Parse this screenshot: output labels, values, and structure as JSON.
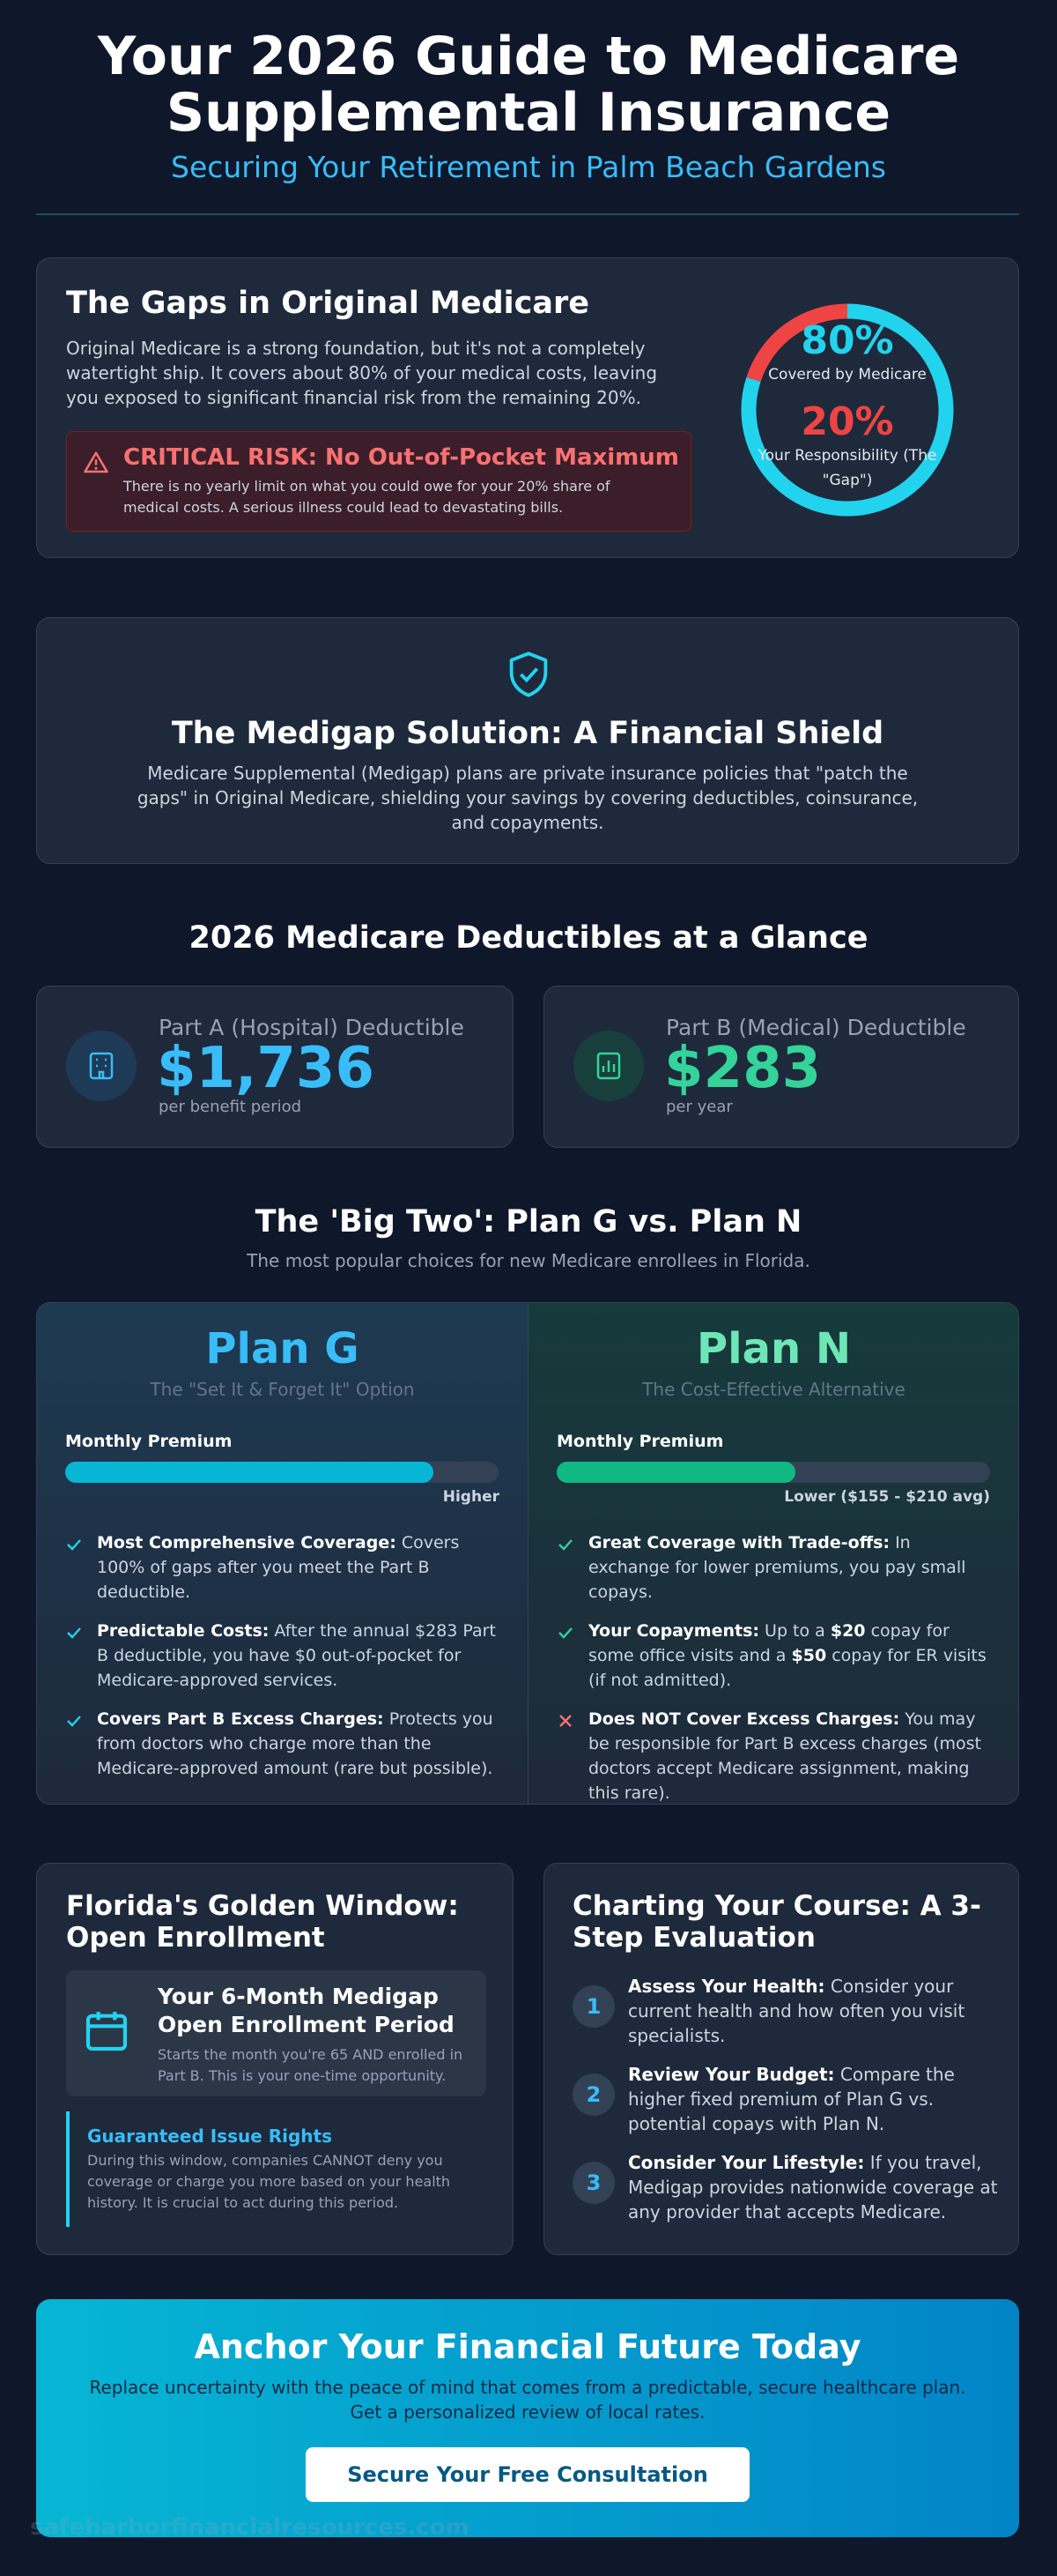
{
  "header": {
    "title": "Your 2026 Guide to Medicare Supplemental Insurance",
    "subtitle": "Securing Your Retirement in Palm Beach Gardens"
  },
  "gaps": {
    "title": "The Gaps in Original Medicare",
    "text": "Original Medicare is a strong foundation, but it's not a completely watertight ship. It covers about 80% of your medical costs, leaving you exposed to significant financial risk from the remaining 20%.",
    "alert": {
      "title": "CRITICAL RISK: No Out-of-Pocket Maximum",
      "text": "There is no yearly limit on what you could owe for your 20% share of medical costs. A serious illness could lead to devastating bills."
    },
    "donut": {
      "segments": [
        {
          "value": 80,
          "label": "80%",
          "caption": "Covered by Medicare",
          "color": "#22d3ee"
        },
        {
          "value": 20,
          "label": "20%",
          "caption": "Your Responsibility (The \"Gap\")",
          "color": "#ef4444"
        }
      ]
    }
  },
  "solution": {
    "title": "The Medigap Solution: A Financial Shield",
    "text": "Medicare Supplemental (Medigap) plans are private insurance policies that \"patch the gaps\" in Original Medicare, shielding your savings by covering deductibles, coinsurance, and copayments."
  },
  "deductibles": {
    "title": "2026 Medicare Deductibles at a Glance",
    "cards": [
      {
        "label": "Part A (Hospital) Deductible",
        "amount": "$1,736",
        "note": "per benefit period"
      },
      {
        "label": "Part B (Medical) Deductible",
        "amount": "$283",
        "note": "per year"
      }
    ]
  },
  "plans": {
    "title": "The 'Big Two': Plan G vs. Plan N",
    "subtitle": "The most popular choices for new Medicare enrollees in Florida.",
    "items": [
      {
        "name": "Plan G",
        "tagline": "The \"Set It & Forget It\" Option",
        "premium_label": "Monthly Premium",
        "premium_note": "Higher",
        "features": [
          {
            "included": true,
            "parts": [
              {
                "b": "Most Comprehensive Coverage:"
              },
              {
                "t": "Covers 100% of gaps after you meet the Part B deductible."
              }
            ]
          },
          {
            "included": true,
            "parts": [
              {
                "b": "Predictable Costs:"
              },
              {
                "t": "After the annual $283 Part B deductible, you have $0 out-of-pocket for Medicare-approved services."
              }
            ]
          },
          {
            "included": true,
            "parts": [
              {
                "b": "Covers Part B Excess Charges:"
              },
              {
                "t": "Protects you from doctors who charge more than the Medicare-approved amount (rare but possible)."
              }
            ]
          }
        ]
      },
      {
        "name": "Plan N",
        "tagline": "The Cost-Effective Alternative",
        "premium_label": "Monthly Premium",
        "premium_note": "Lower ($155 - $210 avg)",
        "features": [
          {
            "included": true,
            "parts": [
              {
                "b": "Great Coverage with Trade-offs:"
              },
              {
                "t": "In exchange for lower premiums, you pay small copays."
              }
            ]
          },
          {
            "included": true,
            "parts": [
              {
                "b": "Your Copayments:"
              },
              {
                "t": "Up to a"
              },
              {
                "b": "$20"
              },
              {
                "t": "copay for some office visits and a"
              },
              {
                "b": "$50"
              },
              {
                "t": "copay for ER visits (if not admitted)."
              }
            ]
          },
          {
            "included": false,
            "parts": [
              {
                "b": "Does NOT Cover Excess Charges:"
              },
              {
                "t": "You may be responsible for Part B excess charges (most doctors accept Medicare assignment, making this rare)."
              }
            ]
          }
        ]
      }
    ]
  },
  "window": {
    "title": "Florida's Golden Window: Open Enrollment",
    "period": {
      "title": "Your 6-Month Medigap Open Enrollment Period",
      "text": "Starts the month you're 65 AND enrolled in Part B. This is your one-time opportunity."
    },
    "rights": {
      "title": "Guaranteed Issue Rights",
      "text": "During this window, companies CANNOT deny you coverage or charge you more based on your health history. It is crucial to act during this period."
    }
  },
  "steps": {
    "title": "Charting Your Course: A 3-Step Evaluation",
    "items": [
      {
        "number": 1,
        "parts": [
          {
            "b": "Assess Your Health:"
          },
          {
            "t": "Consider your current health and how often you visit specialists."
          }
        ]
      },
      {
        "number": 2,
        "parts": [
          {
            "b": "Review Your Budget:"
          },
          {
            "t": "Compare the higher fixed premium of Plan G vs. potential copays with Plan N."
          }
        ]
      },
      {
        "number": 3,
        "parts": [
          {
            "b": "Consider Your Lifestyle:"
          },
          {
            "t": "If you travel, Medigap provides nationwide coverage at any provider that accepts Medicare."
          }
        ]
      }
    ]
  },
  "cta": {
    "title": "Anchor Your Financial Future Today",
    "text": "Replace uncertainty with the peace of mind that comes from a predictable, secure healthcare plan. Get a personalized review of local rates.",
    "button": "Secure Your Free Consultation"
  },
  "footer": "safeharborfinancialresources.com"
}
